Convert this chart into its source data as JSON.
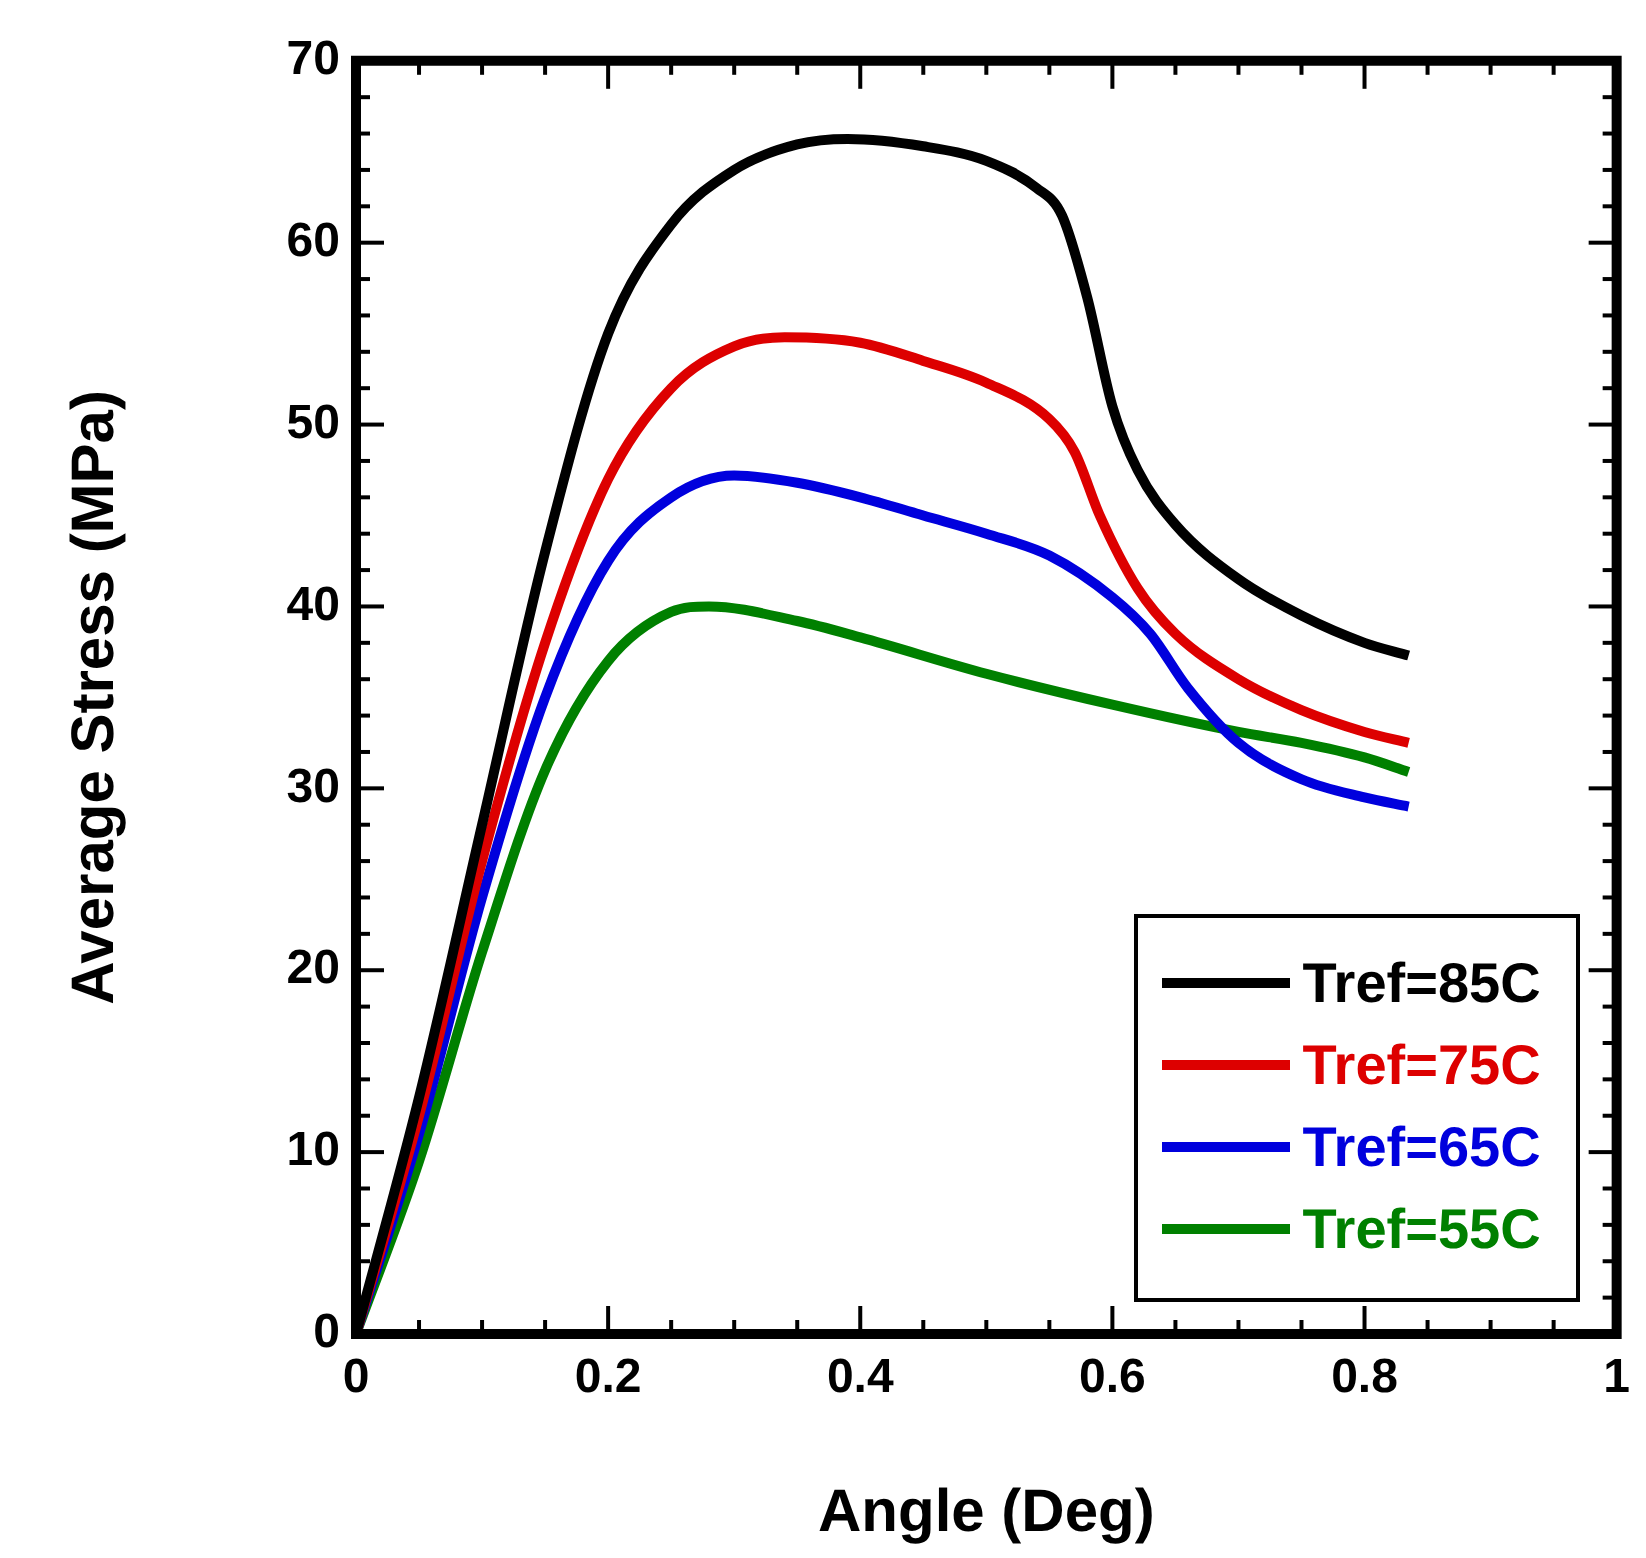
{
  "chart_data": {
    "type": "line",
    "xlabel": "Angle (Deg)",
    "ylabel": "Average Stress (MPa)",
    "xlim": [
      0,
      1
    ],
    "ylim": [
      0,
      70
    ],
    "xticks": [
      0,
      0.2,
      0.4,
      0.6,
      0.8,
      1
    ],
    "yticks": [
      0,
      10,
      20,
      30,
      40,
      50,
      60,
      70
    ],
    "grid": false,
    "legend": "bottom right",
    "marker": "none",
    "line_style": "solid",
    "series": [
      {
        "name": "Tref=85C",
        "color": "#000000",
        "x": [
          0,
          0.05,
          0.1,
          0.15,
          0.2,
          0.25,
          0.3,
          0.35,
          0.39,
          0.45,
          0.5,
          0.54,
          0.56,
          0.58,
          0.6,
          0.62,
          0.65,
          0.7,
          0.75,
          0.8,
          0.835
        ],
        "values": [
          0,
          13,
          28,
          43,
          55,
          61,
          64,
          65.4,
          65.7,
          65.3,
          64.5,
          63,
          61.5,
          57,
          51,
          47.5,
          44.5,
          41.5,
          39.5,
          38,
          37.3
        ]
      },
      {
        "name": "Tref=75C",
        "color": "#dd0000",
        "x": [
          0,
          0.05,
          0.1,
          0.15,
          0.2,
          0.25,
          0.3,
          0.34,
          0.4,
          0.45,
          0.5,
          0.55,
          0.57,
          0.59,
          0.62,
          0.65,
          0.7,
          0.75,
          0.8,
          0.835
        ],
        "values": [
          0,
          12,
          26,
          38,
          47,
          52,
          54.3,
          54.8,
          54.5,
          53.5,
          52.3,
          50.3,
          48.5,
          45,
          41,
          38.5,
          36,
          34.3,
          33.1,
          32.5
        ]
      },
      {
        "name": "Tref=65C",
        "color": "#0000dd",
        "x": [
          0,
          0.05,
          0.1,
          0.15,
          0.2,
          0.25,
          0.3,
          0.35,
          0.4,
          0.45,
          0.5,
          0.55,
          0.6,
          0.63,
          0.66,
          0.7,
          0.75,
          0.8,
          0.835
        ],
        "values": [
          0,
          11,
          24,
          35,
          42.5,
          46,
          47.2,
          46.8,
          46,
          45,
          44,
          42.8,
          40.5,
          38.5,
          35.5,
          32.5,
          30.5,
          29.5,
          29
        ]
      },
      {
        "name": "Tref=55C",
        "color": "#008000",
        "x": [
          0,
          0.05,
          0.1,
          0.15,
          0.2,
          0.25,
          0.28,
          0.35,
          0.4,
          0.5,
          0.6,
          0.7,
          0.75,
          0.8,
          0.835
        ],
        "values": [
          0,
          9.5,
          21,
          31,
          37,
          39.7,
          40,
          39.2,
          38.3,
          36.3,
          34.6,
          33.1,
          32.5,
          31.7,
          30.9
        ]
      }
    ]
  }
}
